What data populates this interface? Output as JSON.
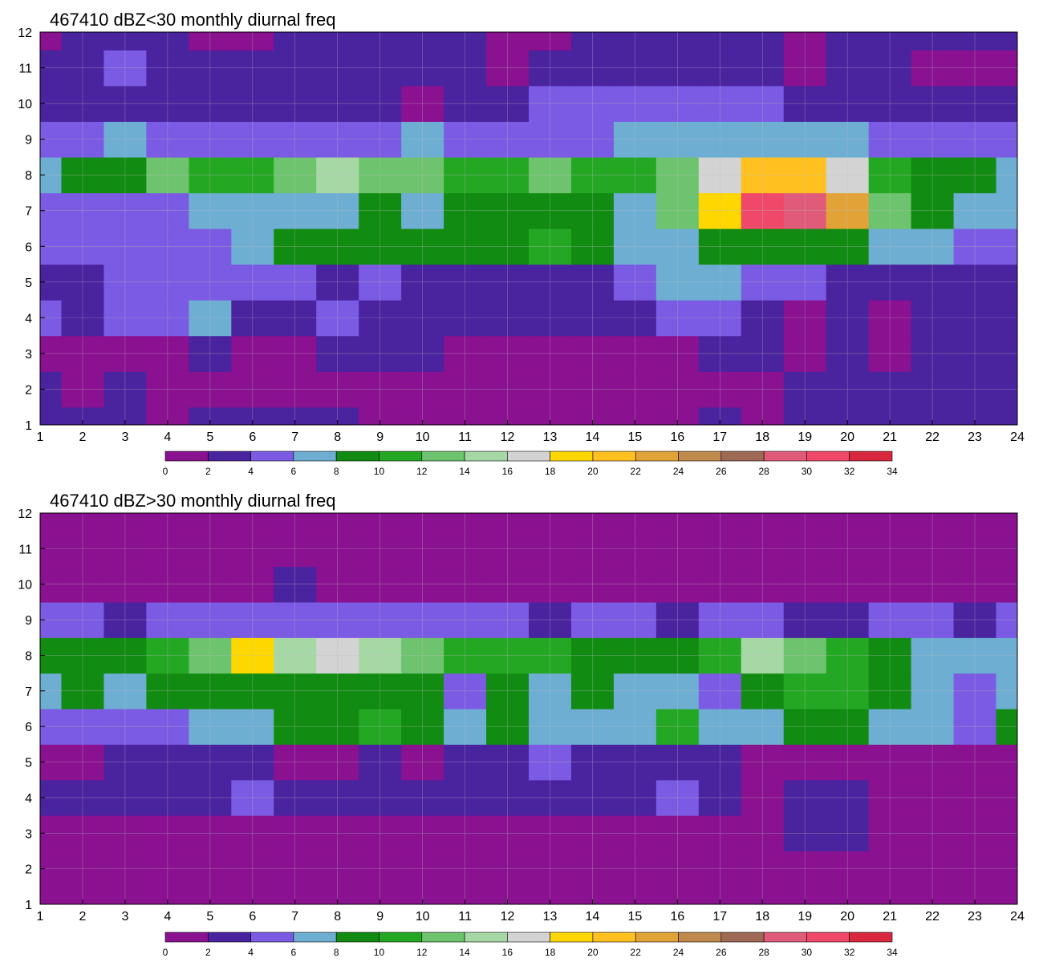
{
  "chart_data": [
    {
      "type": "heatmap",
      "title": "467410 dBZ<30 monthly diurnal freq",
      "xlabel": "",
      "ylabel": "",
      "xlim": [
        1,
        24
      ],
      "ylim": [
        1,
        12
      ],
      "x_ticks": [
        "1",
        "2",
        "3",
        "4",
        "5",
        "6",
        "7",
        "8",
        "9",
        "10",
        "11",
        "12",
        "13",
        "14",
        "15",
        "16",
        "17",
        "18",
        "19",
        "20",
        "21",
        "22",
        "23",
        "24"
      ],
      "y_ticks": [
        "1",
        "2",
        "3",
        "4",
        "5",
        "6",
        "7",
        "8",
        "9",
        "10",
        "11",
        "12"
      ],
      "grid": true,
      "colorbar": {
        "levels": [
          0,
          2,
          4,
          6,
          8,
          10,
          12,
          14,
          16,
          18,
          20,
          22,
          24,
          26,
          28,
          30,
          32,
          34
        ],
        "labels": [
          "0",
          "2",
          "4",
          "6",
          "8",
          "10",
          "12",
          "14",
          "16",
          "18",
          "20",
          "22",
          "24",
          "26",
          "28",
          "30",
          "32",
          "34"
        ],
        "placement": "bottom"
      },
      "rows": [
        {
          "y": 1,
          "values": [
            3,
            3,
            3,
            1,
            3,
            3,
            3,
            3,
            1,
            1,
            1,
            1,
            1,
            1,
            1,
            1,
            3,
            1,
            3,
            3,
            3,
            3,
            3,
            3
          ]
        },
        {
          "y": 2,
          "values": [
            3,
            1,
            3,
            1,
            1,
            1,
            1,
            1,
            1,
            1,
            1,
            1,
            1,
            1,
            1,
            1,
            1,
            1,
            3,
            3,
            3,
            3,
            3,
            3
          ]
        },
        {
          "y": 3,
          "values": [
            1,
            1,
            1,
            1,
            3,
            1,
            1,
            3,
            3,
            3,
            1,
            1,
            1,
            1,
            1,
            1,
            3,
            3,
            1,
            3,
            1,
            3,
            3,
            3
          ]
        },
        {
          "y": 4,
          "values": [
            5,
            3,
            5,
            5,
            6,
            3,
            3,
            5,
            3,
            3,
            3,
            3,
            3,
            3,
            3,
            5,
            5,
            3,
            1,
            3,
            1,
            3,
            3,
            3
          ]
        },
        {
          "y": 5,
          "values": [
            3,
            3,
            5,
            5,
            5,
            5,
            5,
            3,
            5,
            3,
            3,
            3,
            3,
            3,
            5,
            7,
            7,
            5,
            5,
            3,
            3,
            3,
            3,
            3
          ]
        },
        {
          "y": 6,
          "values": [
            5,
            5,
            5,
            5,
            5,
            7,
            9,
            9,
            9,
            9,
            9,
            9,
            11,
            9,
            7,
            7,
            9,
            9,
            9,
            9,
            7,
            7,
            5,
            5
          ]
        },
        {
          "y": 7,
          "values": [
            5,
            5,
            5,
            5,
            7,
            7,
            7,
            7,
            9,
            7,
            9,
            9,
            9,
            9,
            7,
            13,
            19,
            31,
            29,
            23,
            13,
            9,
            7,
            7
          ]
        },
        {
          "y": 8,
          "values": [
            7,
            9,
            9,
            13,
            11,
            11,
            13,
            15,
            13,
            13,
            11,
            11,
            13,
            11,
            11,
            13,
            17,
            21,
            21,
            17,
            11,
            9,
            9,
            7
          ]
        },
        {
          "y": 9,
          "values": [
            5,
            5,
            7,
            5,
            5,
            5,
            5,
            5,
            5,
            7,
            5,
            5,
            5,
            5,
            7,
            7,
            7,
            7,
            7,
            7,
            5,
            5,
            5,
            5
          ]
        },
        {
          "y": 10,
          "values": [
            3,
            3,
            3,
            3,
            3,
            3,
            3,
            3,
            3,
            1,
            3,
            3,
            5,
            5,
            5,
            5,
            5,
            5,
            3,
            3,
            3,
            3,
            3,
            3
          ]
        },
        {
          "y": 11,
          "values": [
            3,
            3,
            5,
            3,
            3,
            3,
            3,
            3,
            3,
            3,
            3,
            1,
            3,
            3,
            3,
            3,
            3,
            3,
            1,
            3,
            3,
            1,
            1,
            1
          ]
        },
        {
          "y": 12,
          "values": [
            1,
            3,
            3,
            3,
            1,
            1,
            3,
            3,
            3,
            3,
            3,
            1,
            1,
            3,
            3,
            3,
            3,
            3,
            1,
            3,
            3,
            3,
            3,
            3
          ]
        }
      ]
    },
    {
      "type": "heatmap",
      "title": "467410 dBZ>30 monthly diurnal freq",
      "xlabel": "",
      "ylabel": "",
      "xlim": [
        1,
        24
      ],
      "ylim": [
        1,
        12
      ],
      "x_ticks": [
        "1",
        "2",
        "3",
        "4",
        "5",
        "6",
        "7",
        "8",
        "9",
        "10",
        "11",
        "12",
        "13",
        "14",
        "15",
        "16",
        "17",
        "18",
        "19",
        "20",
        "21",
        "22",
        "23",
        "24"
      ],
      "y_ticks": [
        "1",
        "2",
        "3",
        "4",
        "5",
        "6",
        "7",
        "8",
        "9",
        "10",
        "11",
        "12"
      ],
      "grid": true,
      "colorbar": {
        "levels": [
          0,
          2,
          4,
          6,
          8,
          10,
          12,
          14,
          16,
          18,
          20,
          22,
          24,
          26,
          28,
          30,
          32,
          34
        ],
        "labels": [
          "0",
          "2",
          "4",
          "6",
          "8",
          "10",
          "12",
          "14",
          "16",
          "18",
          "20",
          "22",
          "24",
          "26",
          "28",
          "30",
          "32",
          "34"
        ],
        "placement": "bottom"
      },
      "rows": [
        {
          "y": 1,
          "values": [
            1,
            1,
            1,
            1,
            1,
            1,
            1,
            1,
            1,
            1,
            1,
            1,
            1,
            1,
            1,
            1,
            1,
            1,
            1,
            1,
            1,
            1,
            1,
            1
          ]
        },
        {
          "y": 2,
          "values": [
            1,
            1,
            1,
            1,
            1,
            1,
            1,
            1,
            1,
            1,
            1,
            1,
            1,
            1,
            1,
            1,
            1,
            1,
            1,
            1,
            1,
            1,
            1,
            1
          ]
        },
        {
          "y": 3,
          "values": [
            1,
            1,
            1,
            1,
            1,
            1,
            1,
            1,
            1,
            1,
            1,
            1,
            1,
            1,
            1,
            1,
            1,
            1,
            3,
            3,
            1,
            1,
            1,
            1
          ]
        },
        {
          "y": 4,
          "values": [
            3,
            3,
            3,
            3,
            3,
            5,
            3,
            3,
            3,
            3,
            3,
            3,
            3,
            3,
            3,
            5,
            3,
            1,
            3,
            3,
            1,
            1,
            1,
            1
          ]
        },
        {
          "y": 5,
          "values": [
            1,
            1,
            3,
            3,
            3,
            3,
            1,
            1,
            3,
            1,
            3,
            3,
            5,
            3,
            3,
            3,
            3,
            1,
            1,
            1,
            1,
            1,
            1,
            1
          ]
        },
        {
          "y": 6,
          "values": [
            5,
            5,
            5,
            5,
            7,
            7,
            9,
            9,
            11,
            9,
            7,
            9,
            7,
            7,
            7,
            11,
            7,
            7,
            9,
            9,
            7,
            7,
            5,
            9
          ]
        },
        {
          "y": 7,
          "values": [
            7,
            9,
            7,
            9,
            9,
            9,
            9,
            9,
            9,
            9,
            5,
            9,
            7,
            9,
            7,
            7,
            5,
            9,
            11,
            11,
            9,
            7,
            5,
            7
          ]
        },
        {
          "y": 8,
          "values": [
            9,
            9,
            9,
            11,
            13,
            19,
            15,
            17,
            15,
            13,
            11,
            11,
            11,
            9,
            9,
            9,
            11,
            15,
            13,
            11,
            9,
            7,
            7,
            7
          ]
        },
        {
          "y": 9,
          "values": [
            5,
            5,
            3,
            5,
            5,
            5,
            5,
            5,
            5,
            5,
            5,
            5,
            3,
            5,
            5,
            3,
            5,
            5,
            3,
            3,
            5,
            5,
            3,
            5
          ]
        },
        {
          "y": 10,
          "values": [
            1,
            1,
            1,
            1,
            1,
            1,
            3,
            1,
            1,
            1,
            1,
            1,
            1,
            1,
            1,
            1,
            1,
            1,
            1,
            1,
            1,
            1,
            1,
            1
          ]
        },
        {
          "y": 11,
          "values": [
            1,
            1,
            1,
            1,
            1,
            1,
            1,
            1,
            1,
            1,
            1,
            1,
            1,
            1,
            1,
            1,
            1,
            1,
            1,
            1,
            1,
            1,
            1,
            1
          ]
        },
        {
          "y": 12,
          "values": [
            1,
            1,
            1,
            1,
            1,
            1,
            1,
            1,
            1,
            1,
            1,
            1,
            1,
            1,
            1,
            1,
            1,
            1,
            1,
            1,
            1,
            1,
            1,
            1
          ]
        }
      ]
    }
  ],
  "colors": {
    "palette": [
      "#8a1190",
      "#4a239f",
      "#7b5be3",
      "#6eaed3",
      "#118b11",
      "#24a824",
      "#6ec46e",
      "#a6d8a6",
      "#d3d3d3",
      "#ffd700",
      "#ffc020",
      "#e1a338",
      "#c08a4c",
      "#9e6a56",
      "#e05a7a",
      "#f04868",
      "#d8283e"
    ],
    "contour_line": "#e0a030",
    "grid": "#bbbbbb"
  }
}
